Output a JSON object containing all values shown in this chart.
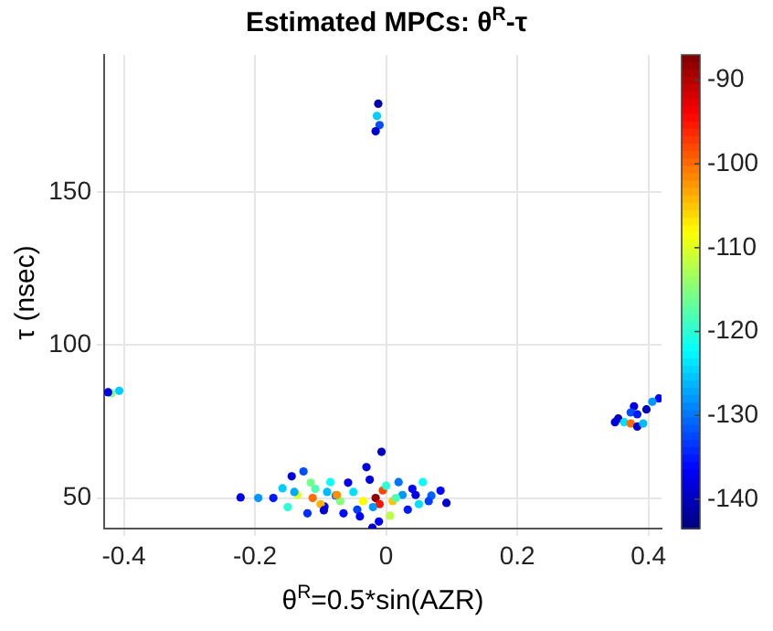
{
  "chart_data": {
    "type": "scatter",
    "title": "Estimated MPCs: θ$^{R}$-τ",
    "xlabel": "θ$^{R}$=0.5*sin(AZR)",
    "ylabel": "τ (nsec)",
    "xlim": [
      -0.43,
      0.42
    ],
    "ylim": [
      40,
      195
    ],
    "xticks": [
      -0.4,
      -0.2,
      0,
      0.2,
      0.4
    ],
    "yticks": [
      50,
      100,
      150
    ],
    "clim": [
      -143.5,
      -87
    ],
    "cticks": [
      -140,
      -130,
      -120,
      -110,
      -100,
      -90
    ],
    "grid": true,
    "legend": false,
    "marker": "circle",
    "x": [
      -0.222,
      -0.195,
      -0.172,
      -0.158,
      -0.144,
      -0.126,
      -0.112,
      -0.108,
      -0.094,
      -0.085,
      -0.077,
      -0.058,
      -0.044,
      -0.03,
      -0.016,
      -0.007,
      -0.005,
      -0.021,
      -0.011,
      0.006,
      0.019,
      0.033,
      0.056,
      0.069,
      0.083,
      0.092,
      -0.15,
      -0.135,
      -0.12,
      -0.1,
      -0.09,
      -0.07,
      -0.065,
      -0.05,
      -0.035,
      -0.025,
      -0.01,
      0.0,
      0.01,
      0.025,
      0.04,
      0.05,
      0.065,
      -0.14,
      -0.115,
      -0.095,
      -0.075,
      -0.04,
      -0.02,
      0.015,
      0.045,
      -0.012,
      -0.014,
      -0.01,
      -0.016,
      0.416,
      0.406,
      0.397,
      0.378,
      0.373,
      0.354,
      0.349,
      0.363,
      0.373,
      0.383,
      0.392,
      0.383,
      -0.419,
      -0.407,
      -0.424
    ],
    "values": [
      50.2,
      50,
      50,
      53.2,
      57.1,
      58.7,
      50,
      53,
      47.2,
      55.2,
      50.8,
      55,
      46.2,
      60.1,
      50,
      65.1,
      52.5,
      40.3,
      42.3,
      44.2,
      55.2,
      46.2,
      55.2,
      50.8,
      52.4,
      48.4,
      47,
      51,
      45,
      48,
      52,
      49,
      45,
      52,
      49,
      56,
      48,
      54,
      49,
      51,
      53,
      48,
      49,
      52,
      55,
      46,
      51,
      44,
      47,
      50,
      51,
      179,
      175,
      172,
      170,
      82.6,
      81.5,
      79,
      80,
      78,
      76,
      74.8,
      74.8,
      74.4,
      73.4,
      74.4,
      77.4,
      84.3,
      85.1,
      84.6
    ],
    "cvalues": [
      -138,
      -128,
      -135,
      -125,
      -138,
      -132,
      -100,
      -118,
      -136,
      -122,
      -130,
      -137,
      -133,
      -138,
      -88,
      -140,
      -98,
      -139,
      -137,
      -112,
      -130,
      -135,
      -122,
      -131,
      -136,
      -139,
      -120,
      -110,
      -134,
      -104,
      -126,
      -115,
      -136,
      -124,
      -108,
      -138,
      -95,
      -120,
      -105,
      -128,
      -136,
      -124,
      -133,
      -127,
      -116,
      -139,
      -102,
      -137,
      -128,
      -118,
      -138,
      -141,
      -125,
      -132,
      -139,
      -136,
      -128,
      -140,
      -138,
      -132,
      -140,
      -138,
      -124,
      -100,
      -139,
      -126,
      -135,
      -115,
      -125,
      -138
    ]
  }
}
